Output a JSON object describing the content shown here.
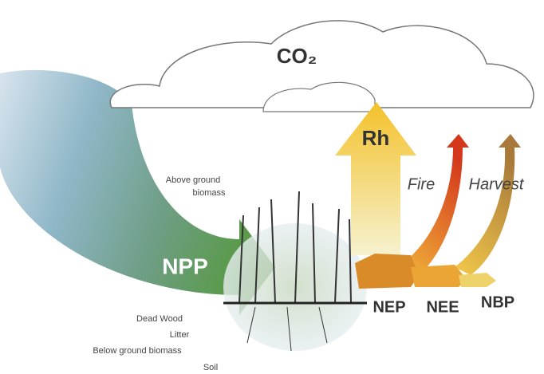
{
  "labels": {
    "co2": "CO₂",
    "rh": "Rh",
    "fire": "Fire",
    "harvest": "Harvest",
    "above_ground": [
      "Above ground",
      "biomass"
    ],
    "npp": "NPP",
    "nep": "NEP",
    "nee": "NEE",
    "nbp": "NBP",
    "dead_wood": "Dead Wood",
    "litter": "Litter",
    "below_ground": "Below ground biomass",
    "soil": "Soil"
  }
}
